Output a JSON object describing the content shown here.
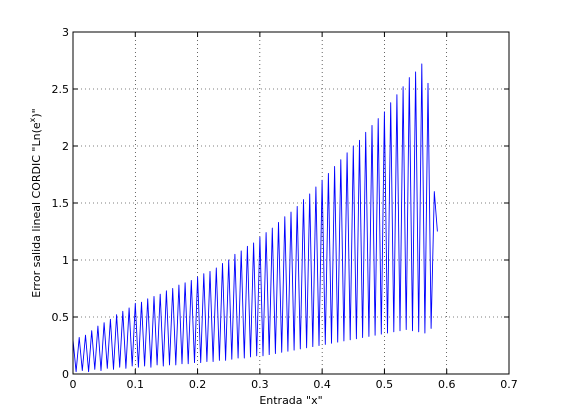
{
  "chart_data": {
    "type": "line",
    "title": "",
    "xlabel": "Entrada \"x\"",
    "ylabel_main": "Error salida lineal CORDIC \"Ln(e",
    "ylabel_sup": "x",
    "ylabel_end": ")\"",
    "xlim": [
      0,
      0.7
    ],
    "ylim": [
      0,
      3
    ],
    "xticks": [
      0,
      0.1,
      0.2,
      0.3,
      0.4,
      0.5,
      0.6,
      0.7
    ],
    "xtick_labels": [
      "0",
      "0.1",
      "0.2",
      "0.3",
      "0.4",
      "0.5",
      "0.6",
      "0.7"
    ],
    "yticks": [
      0,
      0.5,
      1,
      1.5,
      2,
      2.5,
      3
    ],
    "ytick_labels": [
      "0",
      "0.5",
      "1",
      "1.5",
      "2",
      "2.5",
      "3"
    ],
    "grid": true,
    "series": [
      {
        "color": "#0000ff",
        "x": [
          0.0,
          0.005,
          0.01,
          0.015,
          0.02,
          0.025,
          0.03,
          0.035,
          0.04,
          0.045,
          0.05,
          0.055,
          0.06,
          0.065,
          0.07,
          0.075,
          0.08,
          0.085,
          0.09,
          0.095,
          0.1,
          0.105,
          0.11,
          0.115,
          0.12,
          0.125,
          0.13,
          0.135,
          0.14,
          0.145,
          0.15,
          0.155,
          0.16,
          0.165,
          0.17,
          0.175,
          0.18,
          0.185,
          0.19,
          0.195,
          0.2,
          0.205,
          0.21,
          0.215,
          0.22,
          0.225,
          0.23,
          0.235,
          0.24,
          0.245,
          0.25,
          0.255,
          0.26,
          0.265,
          0.27,
          0.275,
          0.28,
          0.285,
          0.29,
          0.295,
          0.3,
          0.305,
          0.31,
          0.315,
          0.32,
          0.325,
          0.33,
          0.335,
          0.34,
          0.345,
          0.35,
          0.355,
          0.36,
          0.365,
          0.37,
          0.375,
          0.38,
          0.385,
          0.39,
          0.395,
          0.4,
          0.405,
          0.41,
          0.415,
          0.42,
          0.425,
          0.43,
          0.435,
          0.44,
          0.445,
          0.45,
          0.455,
          0.46,
          0.465,
          0.47,
          0.475,
          0.48,
          0.485,
          0.49,
          0.495,
          0.5,
          0.505,
          0.51,
          0.515,
          0.52,
          0.525,
          0.53,
          0.535,
          0.54,
          0.545,
          0.55,
          0.555,
          0.56,
          0.565,
          0.57,
          0.575,
          0.58,
          0.585
        ],
        "y": [
          0.3,
          0.02,
          0.32,
          0.03,
          0.34,
          0.02,
          0.38,
          0.04,
          0.42,
          0.03,
          0.45,
          0.05,
          0.48,
          0.04,
          0.52,
          0.06,
          0.55,
          0.05,
          0.58,
          0.07,
          0.62,
          0.06,
          0.63,
          0.07,
          0.66,
          0.06,
          0.68,
          0.08,
          0.7,
          0.07,
          0.73,
          0.08,
          0.75,
          0.08,
          0.78,
          0.09,
          0.8,
          0.09,
          0.82,
          0.1,
          0.85,
          0.1,
          0.88,
          0.11,
          0.9,
          0.11,
          0.93,
          0.12,
          0.97,
          0.12,
          1.0,
          0.13,
          1.05,
          0.14,
          1.08,
          0.14,
          1.12,
          0.15,
          1.15,
          0.16,
          1.2,
          0.16,
          1.24,
          0.17,
          1.28,
          0.18,
          1.33,
          0.19,
          1.38,
          0.2,
          1.42,
          0.21,
          1.47,
          0.22,
          1.53,
          0.23,
          1.58,
          0.24,
          1.64,
          0.25,
          1.7,
          0.26,
          1.76,
          0.27,
          1.82,
          0.28,
          1.88,
          0.29,
          1.94,
          0.3,
          2.0,
          0.31,
          2.05,
          0.32,
          2.12,
          0.33,
          2.18,
          0.34,
          2.24,
          0.35,
          2.3,
          0.36,
          2.38,
          0.37,
          2.45,
          0.38,
          2.52,
          0.39,
          2.6,
          0.38,
          2.65,
          0.37,
          2.72,
          0.36,
          2.55,
          0.4,
          1.6,
          1.25
        ]
      }
    ]
  }
}
